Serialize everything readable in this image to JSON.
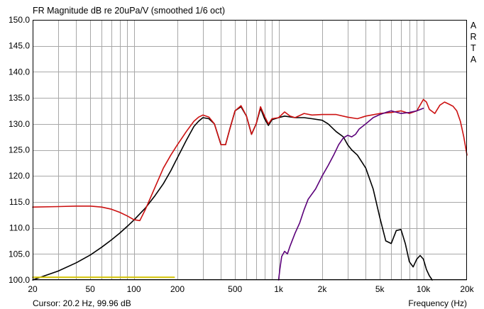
{
  "chart_data": {
    "type": "line",
    "title": "FR Magnitude dB re 20uPa/V (smoothed 1/6 oct)",
    "xlabel": "Frequency (Hz)",
    "ylabel": "",
    "x_scale": "log",
    "xlim": [
      20,
      20000
    ],
    "ylim": [
      100,
      150
    ],
    "grid": true,
    "x_ticks": [
      {
        "value": 20,
        "label": "20"
      },
      {
        "value": 50,
        "label": "50"
      },
      {
        "value": 100,
        "label": "100"
      },
      {
        "value": 200,
        "label": "200"
      },
      {
        "value": 500,
        "label": "500"
      },
      {
        "value": 1000,
        "label": "1k"
      },
      {
        "value": 2000,
        "label": "2k"
      },
      {
        "value": 5000,
        "label": "5k"
      },
      {
        "value": 10000,
        "label": "10k"
      },
      {
        "value": 20000,
        "label": "20k"
      }
    ],
    "y_ticks": [
      "100.0",
      "105.0",
      "110.0",
      "115.0",
      "120.0",
      "125.0",
      "130.0",
      "135.0",
      "140.0",
      "145.0",
      "150.0"
    ],
    "series": [
      {
        "color": "#000000",
        "x": [
          20,
          30,
          40,
          50,
          60,
          70,
          80,
          90,
          100,
          120,
          140,
          160,
          180,
          200,
          230,
          260,
          280,
          300,
          330,
          360,
          400,
          430,
          460,
          500,
          550,
          600,
          650,
          700,
          750,
          800,
          850,
          900,
          1000,
          1100,
          1300,
          1500,
          1700,
          2000,
          2200,
          2500,
          2800,
          3000,
          3200,
          3500,
          4000,
          4500,
          5000,
          5500,
          6000,
          6500,
          7000,
          7500,
          8000,
          8500,
          9000,
          9500,
          10000,
          10500,
          11000,
          11500
        ],
        "values": [
          100.0,
          101.7,
          103.3,
          104.8,
          106.3,
          107.7,
          109.0,
          110.3,
          111.5,
          113.8,
          116.2,
          118.5,
          121.0,
          123.5,
          126.8,
          129.5,
          130.5,
          131.2,
          131.0,
          130.0,
          126.0,
          126.0,
          129.0,
          132.5,
          133.3,
          131.5,
          128.0,
          130.0,
          133.0,
          131.0,
          129.7,
          130.8,
          131.2,
          131.5,
          131.2,
          131.2,
          131.0,
          130.7,
          130.0,
          128.5,
          127.5,
          126.0,
          125.0,
          124.0,
          121.5,
          117.5,
          112.0,
          107.5,
          107.0,
          109.5,
          109.7,
          107.0,
          103.5,
          102.5,
          104.0,
          104.7,
          104.0,
          102.0,
          100.8,
          100.0
        ]
      },
      {
        "color": "#cc1111",
        "x": [
          20,
          30,
          40,
          50,
          60,
          70,
          80,
          90,
          100,
          110,
          120,
          140,
          160,
          180,
          200,
          230,
          260,
          280,
          300,
          330,
          360,
          400,
          430,
          460,
          500,
          550,
          600,
          650,
          700,
          750,
          800,
          850,
          900,
          1000,
          1100,
          1200,
          1300,
          1500,
          1700,
          2000,
          2500,
          3000,
          3500,
          4000,
          5000,
          6000,
          7000,
          8000,
          9000,
          10000,
          10500,
          11000,
          12000,
          13000,
          14000,
          15000,
          16000,
          17000,
          18000,
          19000,
          20000
        ],
        "values": [
          114.0,
          114.1,
          114.2,
          114.2,
          114.0,
          113.6,
          113.0,
          112.3,
          111.6,
          111.4,
          113.5,
          117.8,
          121.5,
          124.0,
          126.0,
          128.5,
          130.5,
          131.3,
          131.7,
          131.3,
          130.0,
          126.0,
          126.0,
          129.0,
          132.5,
          133.5,
          131.5,
          128.0,
          130.0,
          133.3,
          131.5,
          130.0,
          131.0,
          131.2,
          132.3,
          131.5,
          131.2,
          132.0,
          131.7,
          131.8,
          131.8,
          131.3,
          131.0,
          131.5,
          132.0,
          132.2,
          132.5,
          132.0,
          132.5,
          134.7,
          134.2,
          132.8,
          132.0,
          133.6,
          134.2,
          133.8,
          133.4,
          132.5,
          130.5,
          127.5,
          124.0
        ]
      },
      {
        "color": "#5b007a",
        "x": [
          1000,
          1020,
          1050,
          1100,
          1150,
          1200,
          1300,
          1400,
          1500,
          1600,
          1800,
          2000,
          2200,
          2400,
          2600,
          2800,
          3000,
          3200,
          3400,
          3600,
          4000,
          4500,
          5000,
          5500,
          6000,
          7000,
          8000,
          9000,
          10000
        ],
        "values": [
          100.0,
          102.0,
          104.5,
          105.5,
          105.0,
          106.5,
          109.0,
          111.0,
          113.5,
          115.5,
          117.5,
          120.0,
          122.0,
          124.0,
          126.0,
          127.3,
          127.8,
          127.5,
          128.0,
          129.0,
          130.0,
          131.2,
          131.8,
          132.2,
          132.5,
          132.0,
          132.2,
          132.5,
          133.0
        ]
      },
      {
        "color": "#d4c200",
        "x": [
          20,
          190
        ],
        "values": [
          100.5,
          100.5
        ]
      }
    ],
    "cursor_readout": "Cursor: 20.2 Hz, 99.96 dB",
    "side_label": [
      "A",
      "R",
      "T",
      "A"
    ]
  }
}
